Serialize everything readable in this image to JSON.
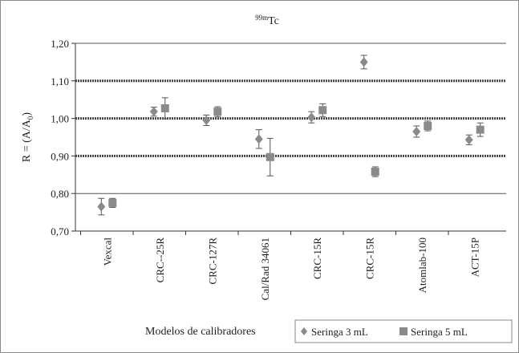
{
  "chart_data": {
    "type": "scatter",
    "title": "99mTc",
    "title_superscript": "99m",
    "title_main": "Tc",
    "ylabel": "R = (A/A",
    "ylabel_sub": "0",
    "ylabel_close": ")",
    "xlabel": "Modelos  de calibradores",
    "ylim": [
      0.7,
      1.2
    ],
    "yticks": [
      "0,70",
      "0,80",
      "0,90",
      "1,00",
      "1,10",
      "1,20"
    ],
    "ytick_values": [
      0.7,
      0.8,
      0.9,
      1.0,
      1.1,
      1.2
    ],
    "grid": true,
    "dashed_reference_lines": [
      0.9,
      1.0,
      1.1
    ],
    "legend_position": "bottom-right",
    "categories": [
      "Vexcal",
      "CRC--25R",
      "CRC-127R",
      "Cal/Rad 34061",
      "CRC-15R",
      "CRC-15R",
      "Atomlab-100",
      "ACT-15P"
    ],
    "series": [
      {
        "name": "Seringa 3 mL",
        "marker": "diamond",
        "color": "#8a8a8a",
        "values": [
          0.765,
          1.018,
          0.995,
          0.945,
          1.003,
          1.15,
          0.965,
          0.943
        ],
        "errors": [
          0.022,
          0.012,
          0.014,
          0.025,
          0.015,
          0.018,
          0.015,
          0.013
        ]
      },
      {
        "name": "Seringa  5 mL",
        "marker": "square",
        "color": "#8a8a8a",
        "values": [
          0.775,
          1.027,
          1.018,
          0.897,
          1.022,
          0.858,
          0.98,
          0.97
        ],
        "errors": [
          0.012,
          0.028,
          0.013,
          0.05,
          0.017,
          0.013,
          0.013,
          0.018
        ]
      }
    ]
  }
}
